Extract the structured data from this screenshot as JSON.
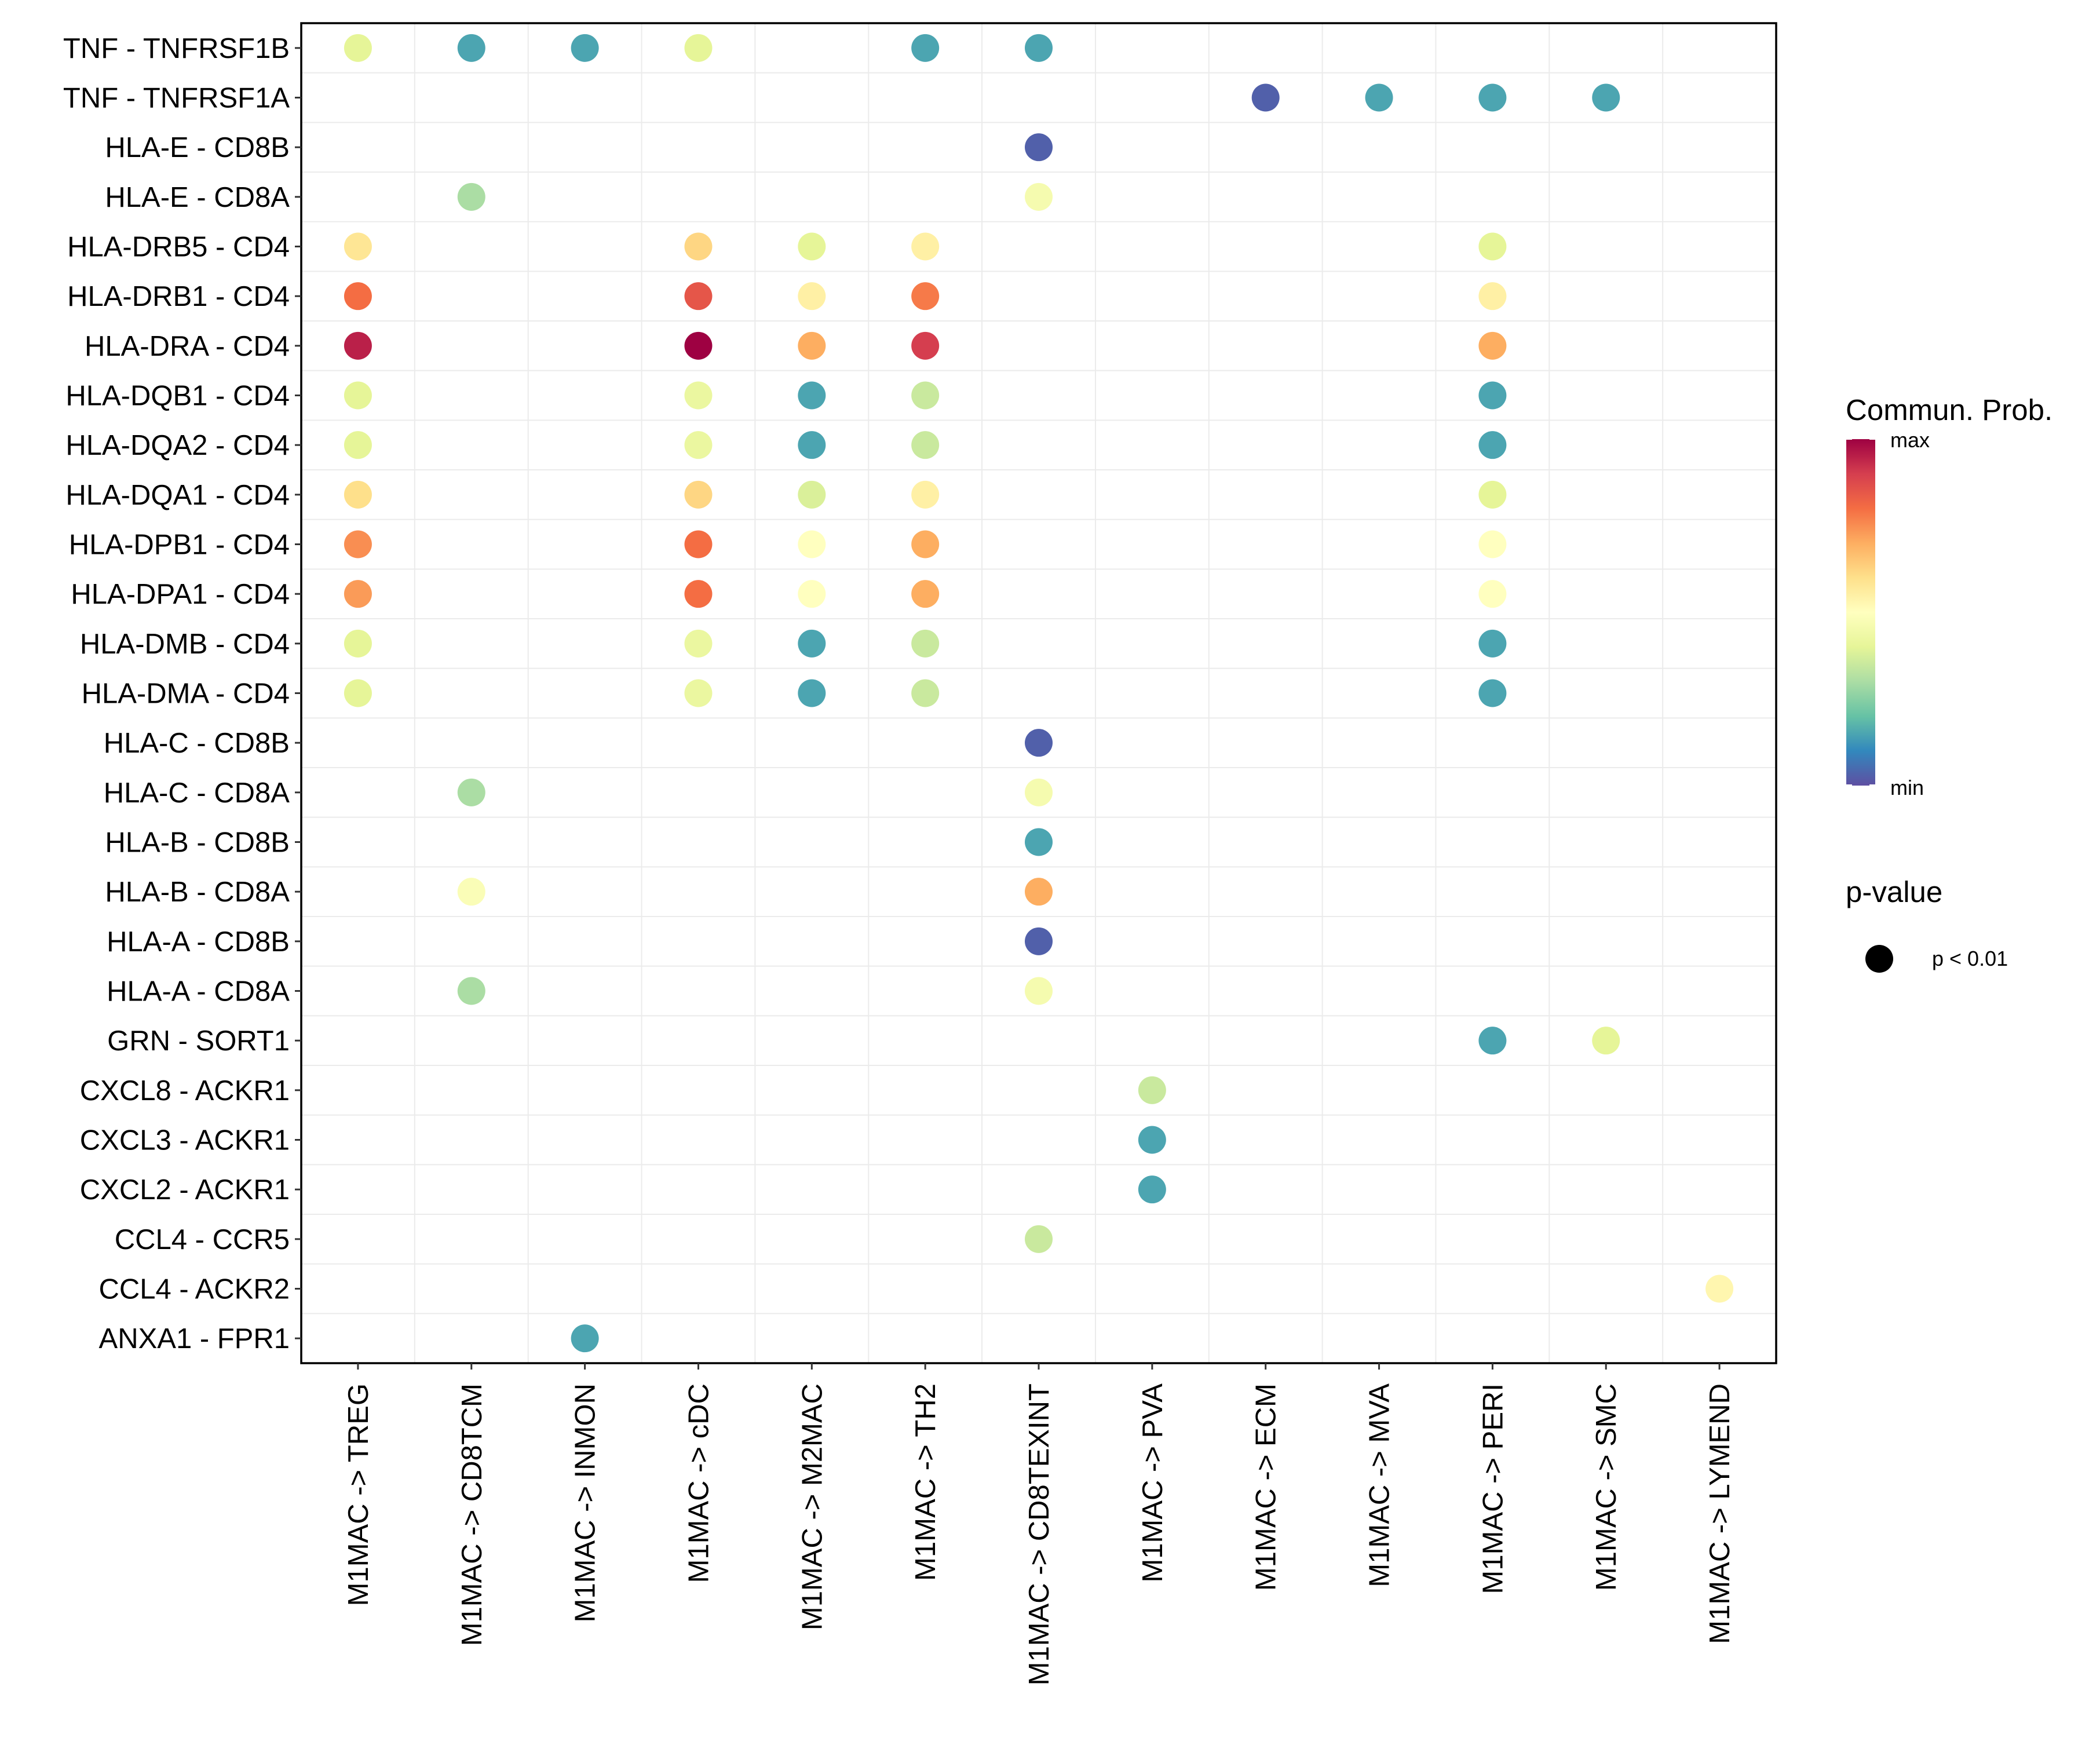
{
  "chart_data": {
    "type": "scatter",
    "subtype": "dot-plot",
    "title": "",
    "xlabel": "",
    "ylabel": "",
    "grid": true,
    "legend_position": "right",
    "x_categories": [
      "M1MAC -> TREG",
      "M1MAC -> CD8TCM",
      "M1MAC -> INMON",
      "M1MAC -> cDC",
      "M1MAC -> M2MAC",
      "M1MAC -> TH2",
      "M1MAC -> CD8TEXINT",
      "M1MAC -> PVA",
      "M1MAC -> ECM",
      "M1MAC -> MVA",
      "M1MAC -> PERI",
      "M1MAC -> SMC",
      "M1MAC -> LYMEND"
    ],
    "y_categories": [
      "TNF - TNFRSF1B",
      "TNF - TNFRSF1A",
      "HLA-E - CD8B",
      "HLA-E - CD8A",
      "HLA-DRB5 - CD4",
      "HLA-DRB1 - CD4",
      "HLA-DRA - CD4",
      "HLA-DQB1 - CD4",
      "HLA-DQA2 - CD4",
      "HLA-DQA1 - CD4",
      "HLA-DPB1 - CD4",
      "HLA-DPA1 - CD4",
      "HLA-DMB - CD4",
      "HLA-DMA - CD4",
      "HLA-C - CD8B",
      "HLA-C - CD8A",
      "HLA-B - CD8B",
      "HLA-B - CD8A",
      "HLA-A - CD8B",
      "HLA-A - CD8A",
      "GRN - SORT1",
      "CXCL8 - ACKR1",
      "CXCL3 - ACKR1",
      "CXCL2 - ACKR1",
      "CCL4 - CCR5",
      "CCL4 - ACKR2",
      "ANXA1 - FPR1"
    ],
    "points_note": "x = index into x_categories, y = index into y_categories, prob = relative communication probability (0=min, 1=max, estimated from color)",
    "points": [
      {
        "x": 0,
        "y": 0,
        "prob": 0.4
      },
      {
        "x": 1,
        "y": 0,
        "prob": 0.15
      },
      {
        "x": 2,
        "y": 0,
        "prob": 0.15
      },
      {
        "x": 3,
        "y": 0,
        "prob": 0.4
      },
      {
        "x": 5,
        "y": 0,
        "prob": 0.15
      },
      {
        "x": 6,
        "y": 0,
        "prob": 0.15
      },
      {
        "x": 8,
        "y": 1,
        "prob": 0.03
      },
      {
        "x": 9,
        "y": 1,
        "prob": 0.15
      },
      {
        "x": 10,
        "y": 1,
        "prob": 0.15
      },
      {
        "x": 11,
        "y": 1,
        "prob": 0.15
      },
      {
        "x": 6,
        "y": 2,
        "prob": 0.03
      },
      {
        "x": 1,
        "y": 3,
        "prob": 0.3
      },
      {
        "x": 6,
        "y": 3,
        "prob": 0.46
      },
      {
        "x": 0,
        "y": 4,
        "prob": 0.58
      },
      {
        "x": 3,
        "y": 4,
        "prob": 0.62
      },
      {
        "x": 4,
        "y": 4,
        "prob": 0.4
      },
      {
        "x": 5,
        "y": 4,
        "prob": 0.55
      },
      {
        "x": 10,
        "y": 4,
        "prob": 0.4
      },
      {
        "x": 0,
        "y": 5,
        "prob": 0.8
      },
      {
        "x": 3,
        "y": 5,
        "prob": 0.85
      },
      {
        "x": 4,
        "y": 5,
        "prob": 0.55
      },
      {
        "x": 5,
        "y": 5,
        "prob": 0.78
      },
      {
        "x": 10,
        "y": 5,
        "prob": 0.55
      },
      {
        "x": 0,
        "y": 6,
        "prob": 0.95
      },
      {
        "x": 3,
        "y": 6,
        "prob": 1.0
      },
      {
        "x": 4,
        "y": 6,
        "prob": 0.7
      },
      {
        "x": 5,
        "y": 6,
        "prob": 0.9
      },
      {
        "x": 10,
        "y": 6,
        "prob": 0.7
      },
      {
        "x": 0,
        "y": 7,
        "prob": 0.4
      },
      {
        "x": 3,
        "y": 7,
        "prob": 0.42
      },
      {
        "x": 4,
        "y": 7,
        "prob": 0.15
      },
      {
        "x": 5,
        "y": 7,
        "prob": 0.35
      },
      {
        "x": 10,
        "y": 7,
        "prob": 0.15
      },
      {
        "x": 0,
        "y": 8,
        "prob": 0.4
      },
      {
        "x": 3,
        "y": 8,
        "prob": 0.42
      },
      {
        "x": 4,
        "y": 8,
        "prob": 0.15
      },
      {
        "x": 5,
        "y": 8,
        "prob": 0.35
      },
      {
        "x": 10,
        "y": 8,
        "prob": 0.15
      },
      {
        "x": 0,
        "y": 9,
        "prob": 0.6
      },
      {
        "x": 3,
        "y": 9,
        "prob": 0.62
      },
      {
        "x": 4,
        "y": 9,
        "prob": 0.38
      },
      {
        "x": 5,
        "y": 9,
        "prob": 0.55
      },
      {
        "x": 10,
        "y": 9,
        "prob": 0.4
      },
      {
        "x": 0,
        "y": 10,
        "prob": 0.75
      },
      {
        "x": 3,
        "y": 10,
        "prob": 0.8
      },
      {
        "x": 4,
        "y": 10,
        "prob": 0.5
      },
      {
        "x": 5,
        "y": 10,
        "prob": 0.7
      },
      {
        "x": 10,
        "y": 10,
        "prob": 0.5
      },
      {
        "x": 0,
        "y": 11,
        "prob": 0.73
      },
      {
        "x": 3,
        "y": 11,
        "prob": 0.8
      },
      {
        "x": 4,
        "y": 11,
        "prob": 0.5
      },
      {
        "x": 5,
        "y": 11,
        "prob": 0.7
      },
      {
        "x": 10,
        "y": 11,
        "prob": 0.5
      },
      {
        "x": 0,
        "y": 12,
        "prob": 0.4
      },
      {
        "x": 3,
        "y": 12,
        "prob": 0.42
      },
      {
        "x": 4,
        "y": 12,
        "prob": 0.15
      },
      {
        "x": 5,
        "y": 12,
        "prob": 0.35
      },
      {
        "x": 10,
        "y": 12,
        "prob": 0.15
      },
      {
        "x": 0,
        "y": 13,
        "prob": 0.4
      },
      {
        "x": 3,
        "y": 13,
        "prob": 0.42
      },
      {
        "x": 4,
        "y": 13,
        "prob": 0.15
      },
      {
        "x": 5,
        "y": 13,
        "prob": 0.35
      },
      {
        "x": 10,
        "y": 13,
        "prob": 0.15
      },
      {
        "x": 6,
        "y": 14,
        "prob": 0.03
      },
      {
        "x": 1,
        "y": 15,
        "prob": 0.3
      },
      {
        "x": 6,
        "y": 15,
        "prob": 0.46
      },
      {
        "x": 6,
        "y": 16,
        "prob": 0.15
      },
      {
        "x": 1,
        "y": 17,
        "prob": 0.48
      },
      {
        "x": 6,
        "y": 17,
        "prob": 0.7
      },
      {
        "x": 6,
        "y": 18,
        "prob": 0.03
      },
      {
        "x": 1,
        "y": 19,
        "prob": 0.3
      },
      {
        "x": 6,
        "y": 19,
        "prob": 0.46
      },
      {
        "x": 10,
        "y": 20,
        "prob": 0.15
      },
      {
        "x": 11,
        "y": 20,
        "prob": 0.4
      },
      {
        "x": 7,
        "y": 21,
        "prob": 0.35
      },
      {
        "x": 7,
        "y": 22,
        "prob": 0.15
      },
      {
        "x": 7,
        "y": 23,
        "prob": 0.15
      },
      {
        "x": 6,
        "y": 24,
        "prob": 0.35
      },
      {
        "x": 12,
        "y": 25,
        "prob": 0.53
      },
      {
        "x": 2,
        "y": 26,
        "prob": 0.15
      }
    ],
    "color_scale": {
      "title": "Commun. Prob.",
      "max_label": "max",
      "min_label": "min",
      "palette": [
        "#5E4FA2",
        "#3288BD",
        "#66C2A5",
        "#ABDDA4",
        "#E6F598",
        "#FFFFBF",
        "#FEE08B",
        "#FDAE61",
        "#F46D43",
        "#D53E4F",
        "#9E0142"
      ]
    },
    "size_legend": {
      "title": "p-value",
      "items": [
        {
          "label": "p < 0.01"
        }
      ]
    }
  }
}
